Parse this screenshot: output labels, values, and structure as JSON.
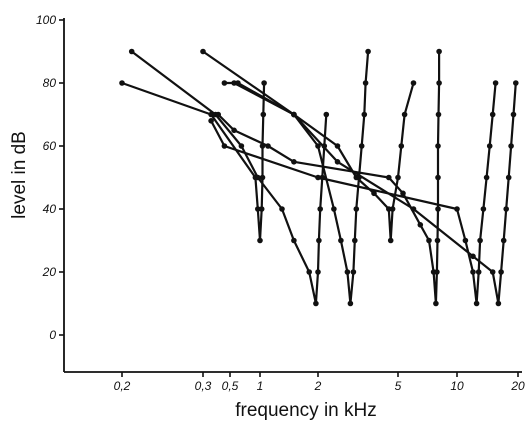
{
  "chart_data": {
    "type": "line",
    "xlabel": "frequency in kHz",
    "ylabel": "level in dB",
    "x_scale": "log",
    "xlim": [
      0.1,
      20
    ],
    "ylim": [
      -10,
      100
    ],
    "x_ticks": [
      {
        "value": 0.2,
        "label": "0,2"
      },
      {
        "value": 0.3,
        "label": "0,3"
      },
      {
        "value": 0.5,
        "label": "0,5"
      },
      {
        "value": 1,
        "label": "1"
      },
      {
        "value": 2,
        "label": "2"
      },
      {
        "value": 5,
        "label": "5"
      },
      {
        "value": 10,
        "label": "10"
      },
      {
        "value": 20,
        "label": "20"
      }
    ],
    "y_ticks": [
      0,
      20,
      40,
      60,
      80,
      100
    ],
    "grid": false,
    "series": [
      {
        "points": [
          [
            0.2,
            80
          ],
          [
            0.35,
            70
          ],
          [
            0.9,
            50
          ],
          [
            0.95,
            40
          ],
          [
            1.0,
            30
          ],
          [
            1.02,
            40
          ],
          [
            1.03,
            50
          ],
          [
            1.03,
            60
          ],
          [
            1.04,
            70
          ],
          [
            1.05,
            80
          ]
        ]
      },
      {
        "points": [
          [
            0.21,
            90
          ],
          [
            0.38,
            70
          ],
          [
            0.65,
            60
          ],
          [
            0.95,
            50
          ],
          [
            1.3,
            40
          ],
          [
            1.5,
            30
          ],
          [
            1.8,
            20
          ],
          [
            1.95,
            10
          ],
          [
            2.0,
            20
          ],
          [
            2.02,
            30
          ],
          [
            2.05,
            40
          ],
          [
            2.1,
            50
          ],
          [
            2.15,
            60
          ],
          [
            2.2,
            70
          ]
        ]
      },
      {
        "points": [
          [
            0.3,
            90
          ],
          [
            1.5,
            70
          ],
          [
            2.0,
            60
          ],
          [
            2.4,
            40
          ],
          [
            2.6,
            30
          ],
          [
            2.8,
            20
          ],
          [
            2.9,
            10
          ],
          [
            3.0,
            20
          ],
          [
            3.05,
            30
          ],
          [
            3.1,
            40
          ],
          [
            3.2,
            50
          ],
          [
            3.3,
            60
          ],
          [
            3.4,
            70
          ],
          [
            3.45,
            80
          ],
          [
            3.55,
            90
          ]
        ]
      },
      {
        "points": [
          [
            0.45,
            80
          ],
          [
            0.55,
            80
          ],
          [
            1.5,
            70
          ],
          [
            2.5,
            60
          ],
          [
            3.1,
            50
          ],
          [
            3.8,
            45
          ],
          [
            4.5,
            40
          ],
          [
            4.6,
            30
          ],
          [
            4.7,
            40
          ],
          [
            5.0,
            50
          ],
          [
            5.2,
            60
          ],
          [
            5.4,
            70
          ],
          [
            6.0,
            80
          ]
        ]
      },
      {
        "points": [
          [
            0.4,
            70
          ],
          [
            0.55,
            65
          ],
          [
            1.1,
            60
          ],
          [
            1.5,
            55
          ],
          [
            4.5,
            50
          ],
          [
            5.3,
            45
          ],
          [
            6.5,
            35
          ],
          [
            7.2,
            30
          ],
          [
            7.6,
            20
          ],
          [
            7.8,
            10
          ],
          [
            7.9,
            20
          ],
          [
            7.95,
            30
          ],
          [
            8.0,
            40
          ],
          [
            8.0,
            50
          ],
          [
            8.0,
            60
          ],
          [
            8.05,
            70
          ],
          [
            8.1,
            80
          ],
          [
            8.1,
            90
          ]
        ]
      },
      {
        "points": [
          [
            0.35,
            68
          ],
          [
            0.45,
            60
          ],
          [
            2.0,
            50
          ],
          [
            10.0,
            40
          ],
          [
            11.0,
            30
          ],
          [
            12.0,
            20
          ],
          [
            12.5,
            10
          ],
          [
            12.8,
            20
          ],
          [
            13.0,
            30
          ],
          [
            13.5,
            40
          ],
          [
            14.0,
            50
          ],
          [
            14.5,
            60
          ],
          [
            15.0,
            70
          ],
          [
            15.5,
            80
          ]
        ]
      },
      {
        "points": [
          [
            0.6,
            80
          ],
          [
            1.5,
            70
          ],
          [
            2.5,
            55
          ],
          [
            6.0,
            40
          ],
          [
            12.0,
            25
          ],
          [
            15.0,
            20
          ],
          [
            16.0,
            10
          ],
          [
            16.5,
            20
          ],
          [
            17.0,
            30
          ],
          [
            17.5,
            40
          ],
          [
            18.0,
            50
          ],
          [
            18.5,
            60
          ],
          [
            19.0,
            70
          ],
          [
            19.5,
            80
          ]
        ]
      }
    ]
  }
}
